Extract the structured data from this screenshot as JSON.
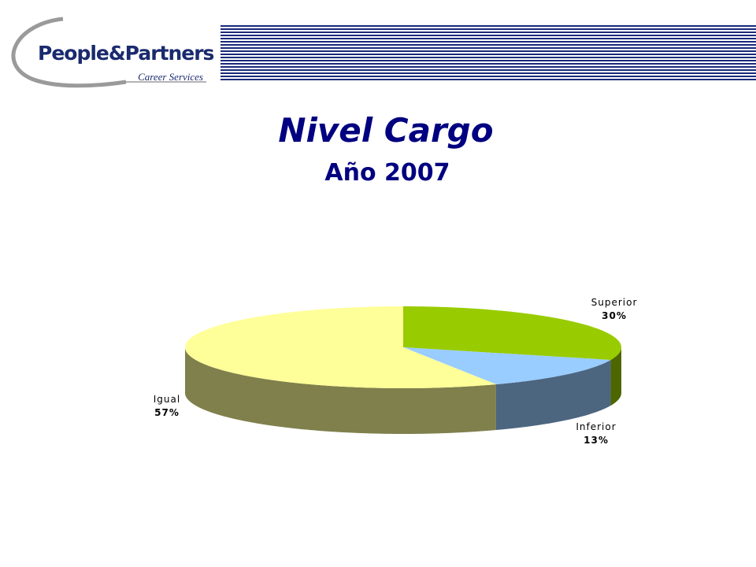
{
  "logo": {
    "name": "People&Partners",
    "tagline": "Career Services"
  },
  "chart_data": {
    "type": "pie",
    "title": "Nivel Cargo",
    "subtitle": "Año 2007",
    "categories": [
      "Superior",
      "Inferior",
      "Igual"
    ],
    "values": [
      30,
      13,
      57
    ],
    "value_labels": [
      "30%",
      "13%",
      "57%"
    ],
    "colors": [
      "#99cc00",
      "#99ccff",
      "#ffff99"
    ]
  }
}
